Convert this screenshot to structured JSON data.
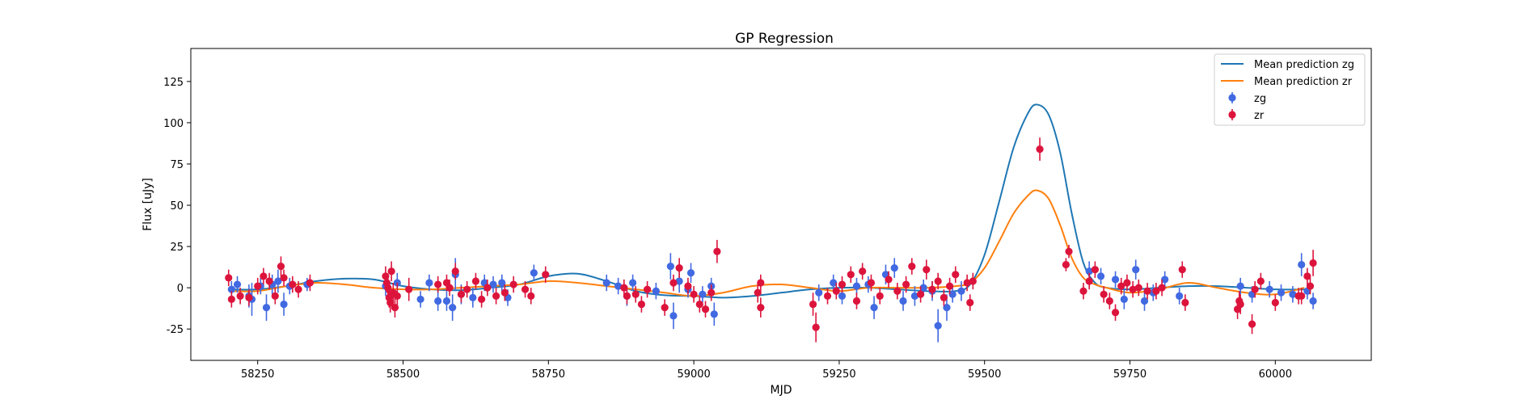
{
  "chart_data": {
    "type": "scatter",
    "title": "GP Regression",
    "xlabel": "MJD",
    "ylabel": "Flux [uJy]",
    "xlim": [
      58135,
      60165
    ],
    "ylim": [
      -44,
      145
    ],
    "xticks": [
      58250,
      58500,
      58750,
      59000,
      59250,
      59500,
      59750,
      60000
    ],
    "yticks": [
      -25,
      0,
      25,
      50,
      75,
      100,
      125
    ],
    "grid": false,
    "legend": "top-right",
    "series": [
      {
        "name": "Mean prediction zg",
        "kind": "line",
        "color": "#1f77b4",
        "x": [
          58200,
          58250,
          58300,
          58350,
          58400,
          58450,
          58500,
          58550,
          58600,
          58650,
          58700,
          58750,
          58800,
          58850,
          58900,
          58950,
          59000,
          59050,
          59100,
          59150,
          59200,
          59250,
          59300,
          59350,
          59400,
          59450,
          59475,
          59500,
          59525,
          59550,
          59575,
          59590,
          59610,
          59630,
          59650,
          59670,
          59690,
          59710,
          59750,
          59800,
          59850,
          59900,
          59950,
          60000,
          60050
        ],
        "y": [
          -1,
          -1,
          1,
          4,
          5.5,
          5,
          1,
          -1,
          -1.5,
          0,
          2,
          7,
          8.5,
          4,
          -2,
          -4.5,
          -5,
          -6,
          -5,
          -3,
          -1,
          0,
          0,
          -1,
          -2,
          -2,
          2,
          20,
          52,
          85,
          106,
          111,
          105,
          82,
          45,
          15,
          3,
          0,
          -1,
          0,
          1,
          1,
          0,
          -1,
          -1
        ]
      },
      {
        "name": "Mean prediction zr",
        "kind": "line",
        "color": "#ff7f0e",
        "x": [
          58200,
          58250,
          58300,
          58350,
          58400,
          58450,
          58500,
          58550,
          58600,
          58650,
          58700,
          58750,
          58800,
          58850,
          58900,
          58950,
          59000,
          59050,
          59100,
          59150,
          59200,
          59250,
          59300,
          59350,
          59400,
          59450,
          59475,
          59500,
          59525,
          59550,
          59575,
          59590,
          59610,
          59630,
          59650,
          59670,
          59690,
          59710,
          59750,
          59800,
          59850,
          59900,
          59950,
          60000,
          60050
        ],
        "y": [
          -2,
          -2,
          1,
          3,
          2,
          0,
          -1,
          -1,
          0,
          1,
          2,
          4,
          3,
          1,
          -1,
          -3,
          -5,
          -3,
          1,
          2,
          0,
          -2,
          0,
          0,
          0,
          1,
          3,
          12,
          28,
          45,
          56,
          59,
          54,
          38,
          18,
          6,
          2,
          0,
          -3,
          -1,
          3,
          0,
          -3,
          -4,
          0
        ]
      },
      {
        "name": "zg",
        "kind": "errorbar",
        "color": "#4169e1",
        "points": [
          [
            58205,
            -1,
            5
          ],
          [
            58215,
            2,
            5
          ],
          [
            58235,
            -5,
            7
          ],
          [
            58240,
            -7,
            10
          ],
          [
            58255,
            1,
            5
          ],
          [
            58265,
            -12,
            8
          ],
          [
            58275,
            2,
            6
          ],
          [
            58285,
            4,
            7
          ],
          [
            58295,
            -10,
            7
          ],
          [
            58305,
            1,
            5
          ],
          [
            58335,
            2,
            4
          ],
          [
            58470,
            1,
            6
          ],
          [
            58490,
            3,
            6
          ],
          [
            58530,
            -7,
            5
          ],
          [
            58545,
            3,
            5
          ],
          [
            58560,
            -8,
            6
          ],
          [
            58575,
            -8,
            6
          ],
          [
            58585,
            -12,
            8
          ],
          [
            58590,
            8,
            10
          ],
          [
            58600,
            -4,
            6
          ],
          [
            58620,
            -6,
            6
          ],
          [
            58640,
            3,
            5
          ],
          [
            58655,
            2,
            5
          ],
          [
            58670,
            3,
            5
          ],
          [
            58680,
            -6,
            5
          ],
          [
            58725,
            9,
            5
          ],
          [
            58850,
            3,
            5
          ],
          [
            58870,
            1,
            5
          ],
          [
            58885,
            -5,
            6
          ],
          [
            58895,
            3,
            5
          ],
          [
            58935,
            -2,
            5
          ],
          [
            58960,
            13,
            8
          ],
          [
            58965,
            -17,
            8
          ],
          [
            58975,
            4,
            7
          ],
          [
            58990,
            -1,
            5
          ],
          [
            58995,
            9,
            6
          ],
          [
            59015,
            -4,
            5
          ],
          [
            59030,
            1,
            5
          ],
          [
            59035,
            -16,
            7
          ],
          [
            59215,
            -3,
            5
          ],
          [
            59240,
            3,
            5
          ],
          [
            59255,
            -5,
            5
          ],
          [
            59280,
            1,
            5
          ],
          [
            59300,
            2,
            5
          ],
          [
            59310,
            -12,
            7
          ],
          [
            59330,
            8,
            6
          ],
          [
            59345,
            12,
            6
          ],
          [
            59360,
            -8,
            6
          ],
          [
            59380,
            -5,
            6
          ],
          [
            59395,
            0,
            5
          ],
          [
            59410,
            -2,
            6
          ],
          [
            59420,
            -23,
            10
          ],
          [
            59435,
            -12,
            8
          ],
          [
            59445,
            -4,
            5
          ],
          [
            59460,
            -2,
            6
          ],
          [
            59680,
            10,
            6
          ],
          [
            59700,
            7,
            5
          ],
          [
            59725,
            5,
            5
          ],
          [
            59740,
            -7,
            6
          ],
          [
            59760,
            11,
            6
          ],
          [
            59775,
            -8,
            6
          ],
          [
            59790,
            -3,
            5
          ],
          [
            59810,
            5,
            5
          ],
          [
            59835,
            -5,
            5
          ],
          [
            59940,
            1,
            5
          ],
          [
            59960,
            -4,
            5
          ],
          [
            59990,
            -1,
            5
          ],
          [
            60010,
            -3,
            5
          ],
          [
            60030,
            -4,
            5
          ],
          [
            60045,
            14,
            7
          ],
          [
            60055,
            -2,
            5
          ],
          [
            60065,
            -8,
            5
          ]
        ]
      },
      {
        "name": "zr",
        "kind": "errorbar",
        "color": "#dc143c",
        "points": [
          [
            58200,
            6,
            5
          ],
          [
            58205,
            -7,
            5
          ],
          [
            58220,
            -5,
            5
          ],
          [
            58235,
            -6,
            5
          ],
          [
            58250,
            1,
            5
          ],
          [
            58260,
            7,
            5
          ],
          [
            58270,
            4,
            5
          ],
          [
            58280,
            -5,
            5
          ],
          [
            58290,
            13,
            6
          ],
          [
            58295,
            6,
            5
          ],
          [
            58310,
            2,
            5
          ],
          [
            58320,
            -1,
            5
          ],
          [
            58340,
            3,
            5
          ],
          [
            58470,
            7,
            6
          ],
          [
            58472,
            3,
            6
          ],
          [
            58474,
            0,
            6
          ],
          [
            58476,
            -6,
            6
          ],
          [
            58478,
            -9,
            6
          ],
          [
            58480,
            10,
            6
          ],
          [
            58483,
            -3,
            6
          ],
          [
            58486,
            -12,
            6
          ],
          [
            58490,
            -5,
            8
          ],
          [
            58510,
            -1,
            7
          ],
          [
            58560,
            2,
            5
          ],
          [
            58575,
            3,
            5
          ],
          [
            58580,
            0,
            5
          ],
          [
            58590,
            10,
            5
          ],
          [
            58600,
            -4,
            5
          ],
          [
            58610,
            -1,
            5
          ],
          [
            58625,
            4,
            5
          ],
          [
            58635,
            -7,
            5
          ],
          [
            58645,
            0,
            5
          ],
          [
            58660,
            -5,
            5
          ],
          [
            58675,
            -3,
            5
          ],
          [
            58690,
            2,
            5
          ],
          [
            58710,
            -1,
            5
          ],
          [
            58720,
            -5,
            5
          ],
          [
            58745,
            8,
            5
          ],
          [
            58880,
            0,
            5
          ],
          [
            58885,
            -5,
            5
          ],
          [
            58900,
            -4,
            5
          ],
          [
            58910,
            -10,
            5
          ],
          [
            58920,
            -1,
            5
          ],
          [
            58950,
            -12,
            5
          ],
          [
            58965,
            3,
            5
          ],
          [
            58975,
            12,
            6
          ],
          [
            58990,
            1,
            5
          ],
          [
            59000,
            -4,
            5
          ],
          [
            59010,
            -10,
            5
          ],
          [
            59020,
            -13,
            5
          ],
          [
            59030,
            -3,
            5
          ],
          [
            59040,
            22,
            7
          ],
          [
            59110,
            -3,
            6
          ],
          [
            59115,
            -12,
            6
          ],
          [
            59115,
            3,
            5
          ],
          [
            59205,
            -10,
            7
          ],
          [
            59210,
            -24,
            9
          ],
          [
            59230,
            -5,
            5
          ],
          [
            59245,
            -2,
            5
          ],
          [
            59255,
            2,
            5
          ],
          [
            59270,
            8,
            5
          ],
          [
            59280,
            -8,
            5
          ],
          [
            59290,
            10,
            5
          ],
          [
            59305,
            3,
            5
          ],
          [
            59320,
            -5,
            5
          ],
          [
            59335,
            5,
            5
          ],
          [
            59350,
            -2,
            5
          ],
          [
            59365,
            2,
            5
          ],
          [
            59375,
            13,
            5
          ],
          [
            59390,
            -4,
            5
          ],
          [
            59400,
            11,
            6
          ],
          [
            59410,
            -1,
            5
          ],
          [
            59420,
            4,
            5
          ],
          [
            59430,
            -6,
            5
          ],
          [
            59440,
            1,
            5
          ],
          [
            59450,
            8,
            5
          ],
          [
            59470,
            3,
            5
          ],
          [
            59475,
            -9,
            5
          ],
          [
            59480,
            4,
            5
          ],
          [
            59595,
            84,
            7
          ],
          [
            59640,
            14,
            4
          ],
          [
            59645,
            22,
            4
          ],
          [
            59670,
            -2,
            5
          ],
          [
            59680,
            4,
            5
          ],
          [
            59690,
            11,
            5
          ],
          [
            59705,
            -4,
            5
          ],
          [
            59715,
            -8,
            5
          ],
          [
            59725,
            -15,
            5
          ],
          [
            59735,
            1,
            5
          ],
          [
            59745,
            3,
            5
          ],
          [
            59755,
            -1,
            5
          ],
          [
            59765,
            0,
            5
          ],
          [
            59780,
            -2,
            5
          ],
          [
            59795,
            -2,
            5
          ],
          [
            59805,
            0,
            5
          ],
          [
            59840,
            11,
            5
          ],
          [
            59845,
            -9,
            5
          ],
          [
            59935,
            -13,
            6
          ],
          [
            59938,
            -8,
            6
          ],
          [
            59940,
            -10,
            6
          ],
          [
            59960,
            -22,
            6
          ],
          [
            59965,
            -1,
            5
          ],
          [
            59975,
            4,
            5
          ],
          [
            60000,
            -9,
            5
          ],
          [
            60040,
            -5,
            5
          ],
          [
            60045,
            -5,
            5
          ],
          [
            60055,
            7,
            5
          ],
          [
            60060,
            1,
            5
          ],
          [
            60065,
            15,
            8
          ]
        ]
      }
    ]
  }
}
